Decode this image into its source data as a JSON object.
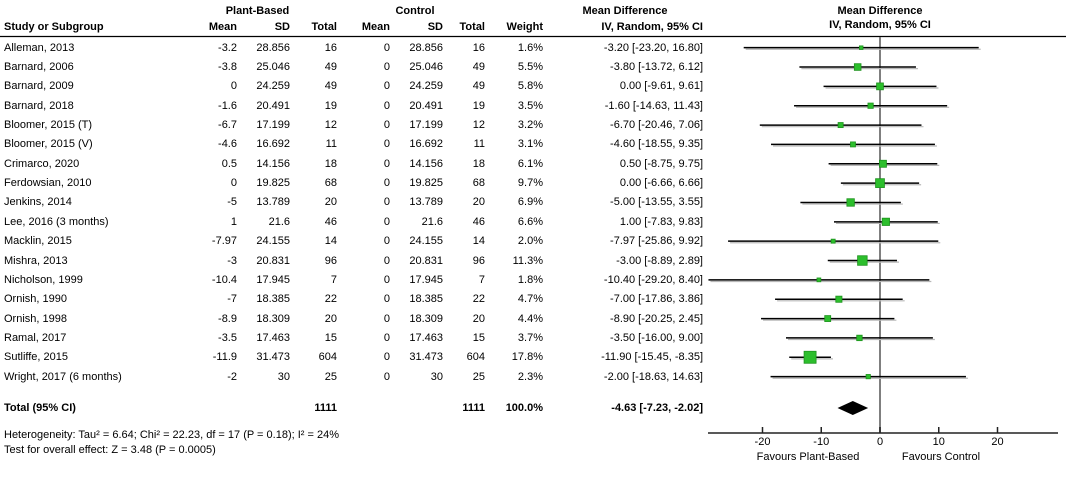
{
  "headers": {
    "group_plant": "Plant-Based",
    "group_control": "Control",
    "study": "Study or Subgroup",
    "mean": "Mean",
    "sd": "SD",
    "total": "Total",
    "weight": "Weight",
    "md_line1": "Mean Difference",
    "md_line2": "IV, Random, 95% CI",
    "plot_line1": "Mean Difference",
    "plot_line2": "IV, Random, 95% CI"
  },
  "chart_data": {
    "type": "forest",
    "effect_measure": "Mean Difference, IV, Random, 95% CI",
    "studies": [
      {
        "name": "Alleman, 2013",
        "pb_mean": "-3.2",
        "pb_sd": "28.856",
        "pb_total": "16",
        "c_mean": "0",
        "c_sd": "28.856",
        "c_total": "16",
        "weight": "1.6%",
        "ci_text": "-3.20 [-23.20, 16.80]",
        "est": -3.2,
        "lo": -23.2,
        "hi": 16.8,
        "w": 1.6
      },
      {
        "name": "Barnard, 2006",
        "pb_mean": "-3.8",
        "pb_sd": "25.046",
        "pb_total": "49",
        "c_mean": "0",
        "c_sd": "25.046",
        "c_total": "49",
        "weight": "5.5%",
        "ci_text": "-3.80 [-13.72, 6.12]",
        "est": -3.8,
        "lo": -13.72,
        "hi": 6.12,
        "w": 5.5
      },
      {
        "name": "Barnard, 2009",
        "pb_mean": "0",
        "pb_sd": "24.259",
        "pb_total": "49",
        "c_mean": "0",
        "c_sd": "24.259",
        "c_total": "49",
        "weight": "5.8%",
        "ci_text": "0.00 [-9.61, 9.61]",
        "est": 0.0,
        "lo": -9.61,
        "hi": 9.61,
        "w": 5.8
      },
      {
        "name": "Barnard, 2018",
        "pb_mean": "-1.6",
        "pb_sd": "20.491",
        "pb_total": "19",
        "c_mean": "0",
        "c_sd": "20.491",
        "c_total": "19",
        "weight": "3.5%",
        "ci_text": "-1.60 [-14.63, 11.43]",
        "est": -1.6,
        "lo": -14.63,
        "hi": 11.43,
        "w": 3.5
      },
      {
        "name": "Bloomer, 2015 (T)",
        "pb_mean": "-6.7",
        "pb_sd": "17.199",
        "pb_total": "12",
        "c_mean": "0",
        "c_sd": "17.199",
        "c_total": "12",
        "weight": "3.2%",
        "ci_text": "-6.70 [-20.46, 7.06]",
        "est": -6.7,
        "lo": -20.46,
        "hi": 7.06,
        "w": 3.2
      },
      {
        "name": "Bloomer, 2015 (V)",
        "pb_mean": "-4.6",
        "pb_sd": "16.692",
        "pb_total": "11",
        "c_mean": "0",
        "c_sd": "16.692",
        "c_total": "11",
        "weight": "3.1%",
        "ci_text": "-4.60 [-18.55, 9.35]",
        "est": -4.6,
        "lo": -18.55,
        "hi": 9.35,
        "w": 3.1
      },
      {
        "name": "Crimarco, 2020",
        "pb_mean": "0.5",
        "pb_sd": "14.156",
        "pb_total": "18",
        "c_mean": "0",
        "c_sd": "14.156",
        "c_total": "18",
        "weight": "6.1%",
        "ci_text": "0.50 [-8.75, 9.75]",
        "est": 0.5,
        "lo": -8.75,
        "hi": 9.75,
        "w": 6.1
      },
      {
        "name": "Ferdowsian, 2010",
        "pb_mean": "0",
        "pb_sd": "19.825",
        "pb_total": "68",
        "c_mean": "0",
        "c_sd": "19.825",
        "c_total": "68",
        "weight": "9.7%",
        "ci_text": "0.00 [-6.66, 6.66]",
        "est": 0.0,
        "lo": -6.66,
        "hi": 6.66,
        "w": 9.7
      },
      {
        "name": "Jenkins, 2014",
        "pb_mean": "-5",
        "pb_sd": "13.789",
        "pb_total": "20",
        "c_mean": "0",
        "c_sd": "13.789",
        "c_total": "20",
        "weight": "6.9%",
        "ci_text": "-5.00 [-13.55, 3.55]",
        "est": -5.0,
        "lo": -13.55,
        "hi": 3.55,
        "w": 6.9
      },
      {
        "name": "Lee, 2016 (3 months)",
        "pb_mean": "1",
        "pb_sd": "21.6",
        "pb_total": "46",
        "c_mean": "0",
        "c_sd": "21.6",
        "c_total": "46",
        "weight": "6.6%",
        "ci_text": "1.00 [-7.83, 9.83]",
        "est": 1.0,
        "lo": -7.83,
        "hi": 9.83,
        "w": 6.6
      },
      {
        "name": "Macklin, 2015",
        "pb_mean": "-7.97",
        "pb_sd": "24.155",
        "pb_total": "14",
        "c_mean": "0",
        "c_sd": "24.155",
        "c_total": "14",
        "weight": "2.0%",
        "ci_text": "-7.97 [-25.86, 9.92]",
        "est": -7.97,
        "lo": -25.86,
        "hi": 9.92,
        "w": 2.0
      },
      {
        "name": "Mishra, 2013",
        "pb_mean": "-3",
        "pb_sd": "20.831",
        "pb_total": "96",
        "c_mean": "0",
        "c_sd": "20.831",
        "c_total": "96",
        "weight": "11.3%",
        "ci_text": "-3.00 [-8.89, 2.89]",
        "est": -3.0,
        "lo": -8.89,
        "hi": 2.89,
        "w": 11.3
      },
      {
        "name": "Nicholson, 1999",
        "pb_mean": "-10.4",
        "pb_sd": "17.945",
        "pb_total": "7",
        "c_mean": "0",
        "c_sd": "17.945",
        "c_total": "7",
        "weight": "1.8%",
        "ci_text": "-10.40 [-29.20, 8.40]",
        "est": -10.4,
        "lo": -29.2,
        "hi": 8.4,
        "w": 1.8
      },
      {
        "name": "Ornish, 1990",
        "pb_mean": "-7",
        "pb_sd": "18.385",
        "pb_total": "22",
        "c_mean": "0",
        "c_sd": "18.385",
        "c_total": "22",
        "weight": "4.7%",
        "ci_text": "-7.00 [-17.86, 3.86]",
        "est": -7.0,
        "lo": -17.86,
        "hi": 3.86,
        "w": 4.7
      },
      {
        "name": "Ornish, 1998",
        "pb_mean": "-8.9",
        "pb_sd": "18.309",
        "pb_total": "20",
        "c_mean": "0",
        "c_sd": "18.309",
        "c_total": "20",
        "weight": "4.4%",
        "ci_text": "-8.90 [-20.25, 2.45]",
        "est": -8.9,
        "lo": -20.25,
        "hi": 2.45,
        "w": 4.4
      },
      {
        "name": "Ramal, 2017",
        "pb_mean": "-3.5",
        "pb_sd": "17.463",
        "pb_total": "15",
        "c_mean": "0",
        "c_sd": "17.463",
        "c_total": "15",
        "weight": "3.7%",
        "ci_text": "-3.50 [-16.00, 9.00]",
        "est": -3.5,
        "lo": -16.0,
        "hi": 9.0,
        "w": 3.7
      },
      {
        "name": "Sutliffe, 2015",
        "pb_mean": "-11.9",
        "pb_sd": "31.473",
        "pb_total": "604",
        "c_mean": "0",
        "c_sd": "31.473",
        "c_total": "604",
        "weight": "17.8%",
        "ci_text": "-11.90 [-15.45, -8.35]",
        "est": -11.9,
        "lo": -15.45,
        "hi": -8.35,
        "w": 17.8
      },
      {
        "name": "Wright, 2017 (6 months)",
        "pb_mean": "-2",
        "pb_sd": "30",
        "pb_total": "25",
        "c_mean": "0",
        "c_sd": "30",
        "c_total": "25",
        "weight": "2.3%",
        "ci_text": "-2.00 [-18.63, 14.63]",
        "est": -2.0,
        "lo": -18.63,
        "hi": 14.63,
        "w": 2.3
      }
    ],
    "total": {
      "label": "Total (95% CI)",
      "pb_total": "1111",
      "c_total": "1111",
      "weight": "100.0%",
      "ci_text": "-4.63 [-7.23, -2.02]",
      "est": -4.63,
      "lo": -7.23,
      "hi": -2.02
    },
    "footer": {
      "heterogeneity": "Heterogeneity: Tau² = 6.64; Chi² = 22.23, df = 17 (P = 0.18); I² = 24%",
      "overall_effect": "Test for overall effect: Z = 3.48 (P = 0.0005)"
    },
    "axis": {
      "ticks": [
        -20,
        -10,
        0,
        10,
        20
      ],
      "xmin": -29.4,
      "xmax": 30.3,
      "favours_left": "Favours Plant-Based",
      "favours_right": "Favours Control"
    },
    "colors": {
      "marker_fill": "#2CBE2C",
      "marker_stroke": "#1D931D",
      "zero_line": "#7f7f7f",
      "ci_line": "#000000",
      "ci_shadow": "#b8b8b8",
      "diamond": "#000000"
    }
  }
}
